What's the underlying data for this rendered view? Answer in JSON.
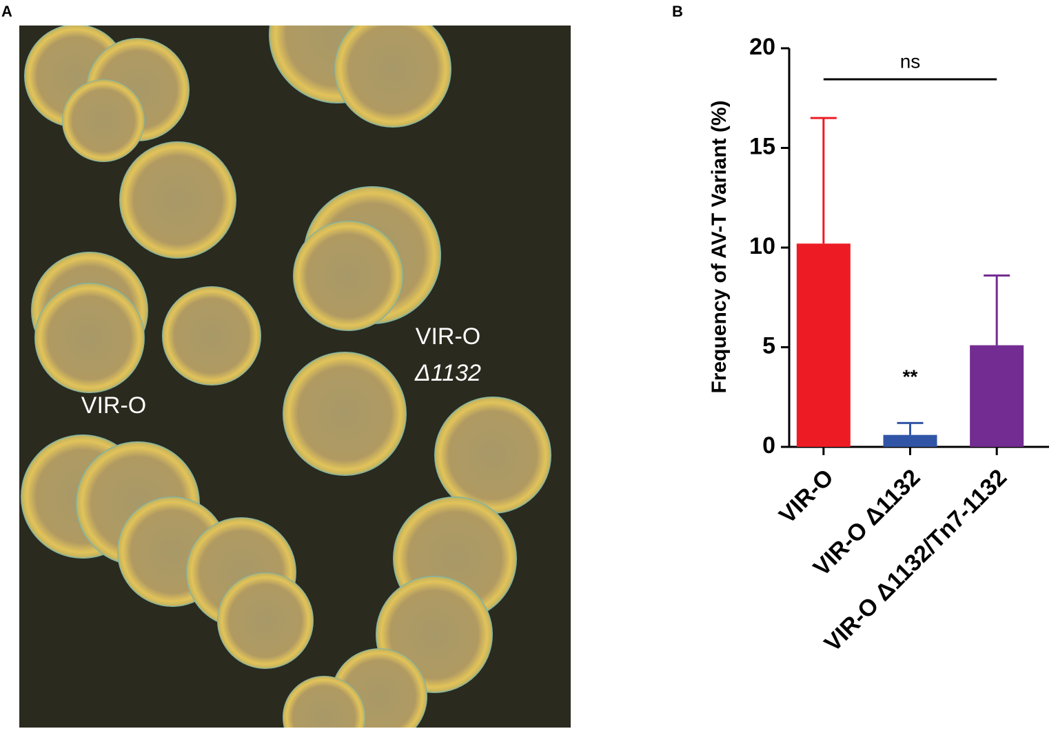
{
  "panel_a": {
    "label": "A",
    "labels": [
      "VIR-O",
      "VIR-O",
      "Δ1132"
    ]
  },
  "panel_b": {
    "label": "B"
  },
  "chart_data": {
    "type": "bar",
    "y_label": "Frequency of AV-T Variant (%)",
    "categories": [
      "VIR-O",
      "VIR-O Δ1132",
      "VIR-O Δ1132/Tn7-1132"
    ],
    "values": [
      10.2,
      0.6,
      5.1
    ],
    "errors": [
      6.3,
      0.6,
      3.5
    ],
    "colors": [
      "#ed1c24",
      "#3155a6",
      "#732c91"
    ],
    "ylim": [
      0,
      20
    ],
    "yticks": [
      0,
      5,
      10,
      15,
      20
    ],
    "significance": [
      {
        "label": "ns",
        "from": 0,
        "to": 2
      }
    ],
    "markers": [
      {
        "text": "**",
        "category": 1
      }
    ]
  }
}
